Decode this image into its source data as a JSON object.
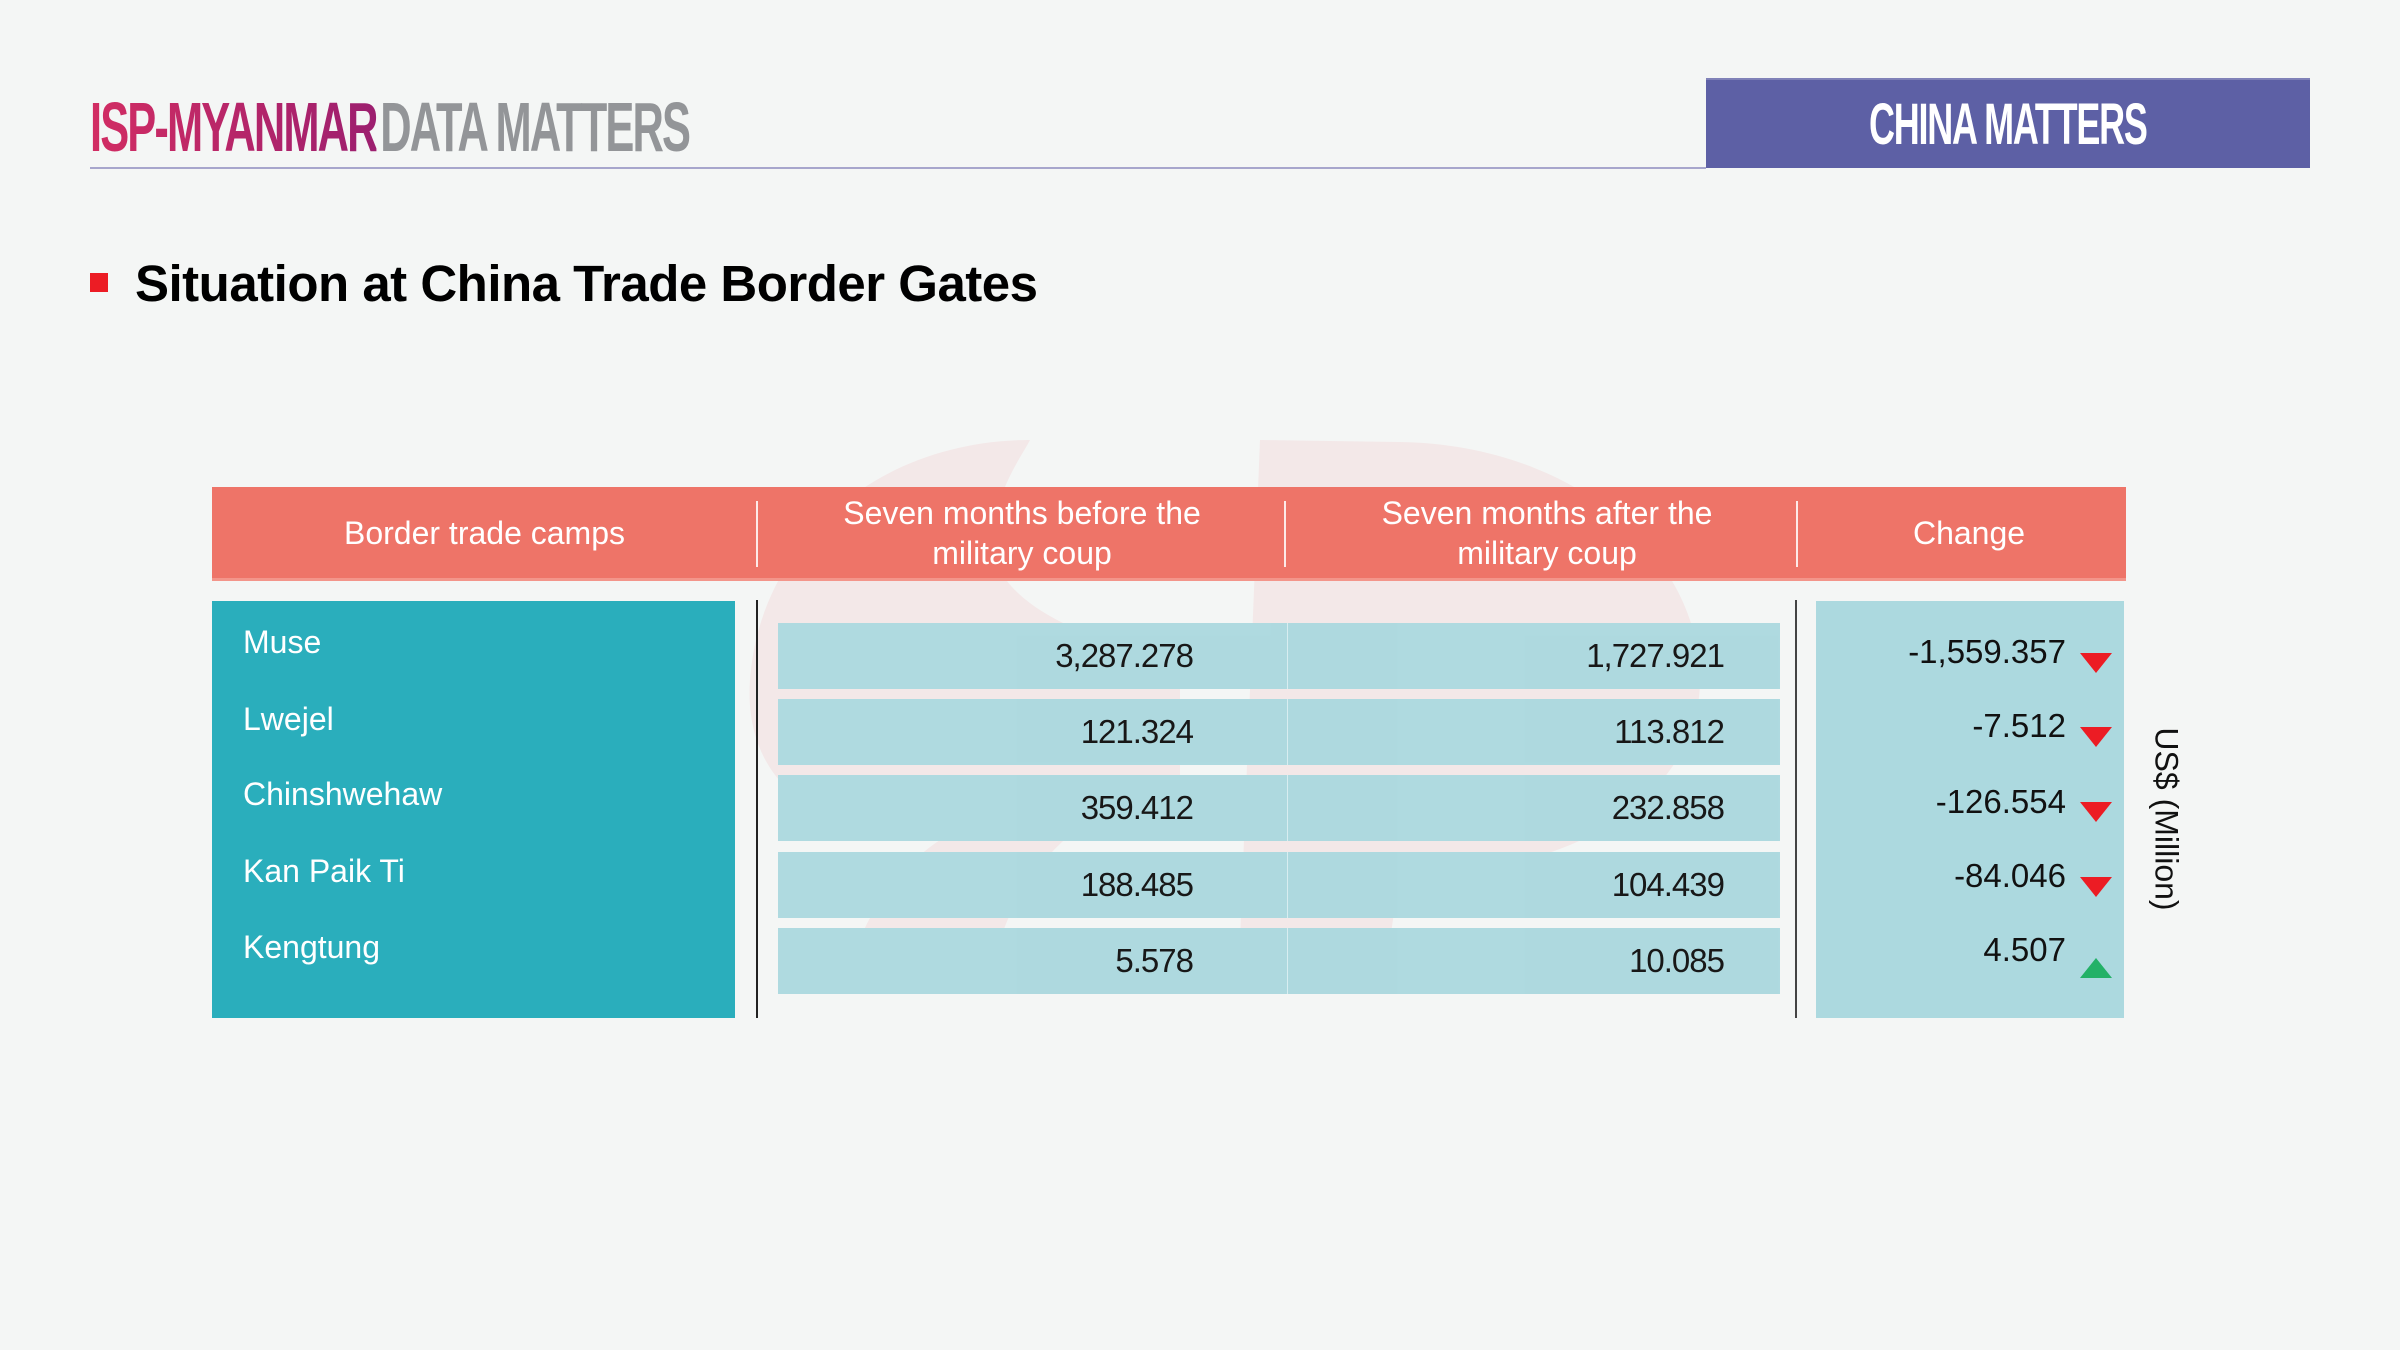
{
  "header": {
    "brand": "ISP-MYANMAR",
    "brand_suffix": "DATA MATTERS",
    "series_label": "CHINA MATTERS"
  },
  "page_title": "Situation at China Trade Border Gates",
  "colors": {
    "brand_pink": "#d22d63",
    "series_purple": "#5d60a5",
    "header_coral": "#ee7468",
    "teal": "#2aaebc",
    "light_teal": "#acd9df",
    "down_red": "#ec1c24",
    "up_green": "#23b167"
  },
  "table": {
    "columns": [
      "Border trade camps",
      "Seven months before the military coup",
      "Seven months after the military coup",
      "Change"
    ],
    "unit_label": "US$ (Million)",
    "rows": [
      {
        "camp": "Muse",
        "before": "3,287.278",
        "after": "1,727.921",
        "change": "-1,559.357",
        "trend": "down"
      },
      {
        "camp": "Lwejel",
        "before": "121.324",
        "after": "113.812",
        "change": "-7.512",
        "trend": "down"
      },
      {
        "camp": "Chinshwehaw",
        "before": "359.412",
        "after": "232.858",
        "change": "-126.554",
        "trend": "down"
      },
      {
        "camp": "Kan Paik Ti",
        "before": "188.485",
        "after": "104.439",
        "change": "-84.046",
        "trend": "down"
      },
      {
        "camp": "Kengtung",
        "before": "5.578",
        "after": "10.085",
        "change": "4.507",
        "trend": "up"
      }
    ]
  }
}
